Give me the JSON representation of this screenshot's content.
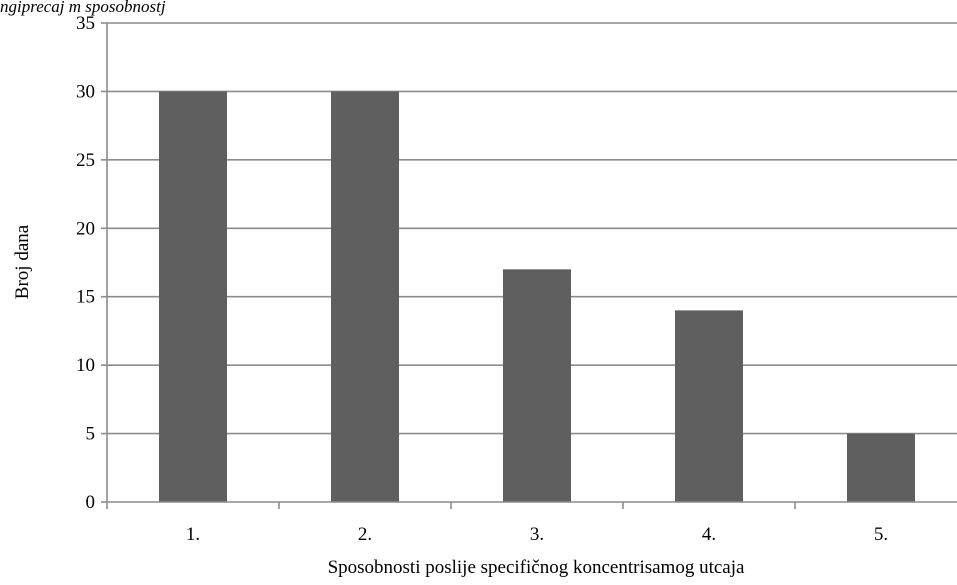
{
  "header": {
    "caption": "ngiprecaj m sposobnostj"
  },
  "chart_data": {
    "type": "bar",
    "categories": [
      "1.",
      "2.",
      "3.",
      "4.",
      "5."
    ],
    "values": [
      30,
      30,
      17,
      14,
      5
    ],
    "xlabel": "Sposobnosti poslije specifičnog koncentrisamog utcaja",
    "ylabel": "Broj dana",
    "ylim": [
      0,
      35
    ],
    "yticks": [
      0,
      5,
      10,
      15,
      20,
      25,
      30,
      35
    ],
    "grid": true,
    "bar_color": "#5f5f5f",
    "grid_color": "#8c8c8c",
    "axis_color": "#8c8c8c"
  }
}
